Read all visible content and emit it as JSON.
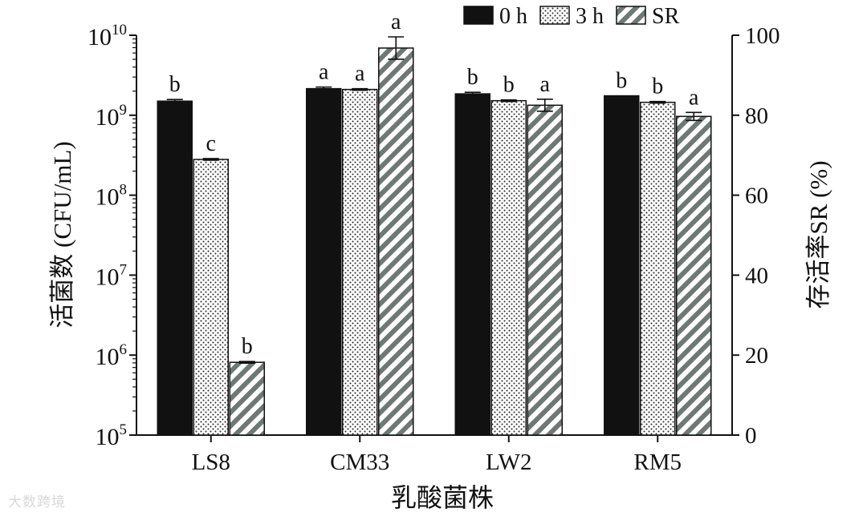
{
  "chart_data": {
    "type": "bar",
    "categories": [
      "LS8",
      "CM33",
      "LW2",
      "RM5"
    ],
    "xlabel": "乳酸菌株",
    "ylabel": "活菌数 (CFU/mL)",
    "y2label": "存活率SR (%)",
    "y_scale": "log",
    "ylim": [
      100000,
      10000000000
    ],
    "y_ticks": [
      {
        "value": 100000,
        "base": "10",
        "exp": "5"
      },
      {
        "value": 1000000,
        "base": "10",
        "exp": "6"
      },
      {
        "value": 10000000,
        "base": "10",
        "exp": "7"
      },
      {
        "value": 100000000,
        "base": "10",
        "exp": "8"
      },
      {
        "value": 1000000000,
        "base": "10",
        "exp": "9"
      },
      {
        "value": 10000000000,
        "base": "10",
        "exp": "10"
      }
    ],
    "y2lim": [
      0,
      100
    ],
    "y2_ticks": [
      "0",
      "20",
      "40",
      "60",
      "80",
      "100"
    ],
    "legend_position": "top-right",
    "series": [
      {
        "name": "0 h",
        "axis": "left",
        "pattern": "solid",
        "values": [
          1500000000,
          2150000000,
          1850000000,
          1750000000
        ],
        "errors": [
          0.02,
          0.02,
          0.02,
          0
        ],
        "letters": [
          "b",
          "a",
          "b",
          "b"
        ]
      },
      {
        "name": "3 h",
        "axis": "left",
        "pattern": "dots",
        "values": [
          280000000,
          2100000000,
          1520000000,
          1450000000
        ],
        "errors": [
          0.01,
          0.01,
          0.01,
          0.01
        ],
        "letters": [
          "c",
          "a",
          "b",
          "b"
        ]
      },
      {
        "name": "SR",
        "axis": "right",
        "pattern": "hatch",
        "values": [
          18.2,
          96.8,
          82.5,
          79.7
        ],
        "errors": [
          0.2,
          2.8,
          1.5,
          1.0
        ],
        "letters": [
          "b",
          "a",
          "a",
          "a"
        ]
      }
    ],
    "colors": {
      "bar_dark": "#111111",
      "hatch_stripe": "#6e7874",
      "axis": "#111111"
    }
  },
  "watermark": "大数跨境"
}
